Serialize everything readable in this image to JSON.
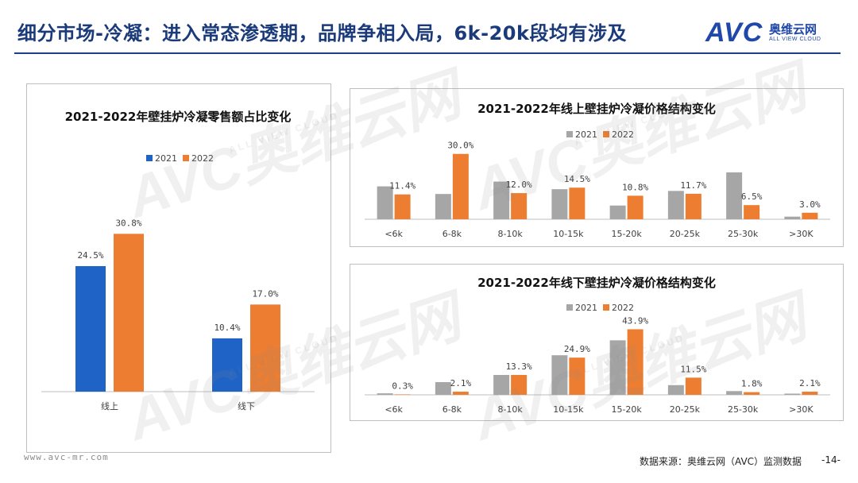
{
  "header": {
    "title": "细分市场-冷凝：进入常态渗透期，品牌争相入局，6k-20k段均有涉及",
    "logo_text": "AVC",
    "logo_cn": "奥维云网",
    "logo_en": "ALL VIEW CLOUD"
  },
  "colors": {
    "c2021_left": "#1f63c6",
    "c2021": "#a6a6a6",
    "c2022": "#ed7d31",
    "title": "#1a3a7a"
  },
  "watermark": {
    "brand": "AVC",
    "cn": "奥维云网",
    "en": "ALL VIEW CLOUD"
  },
  "chart_data": [
    {
      "type": "bar",
      "title": "2021-2022年壁挂炉冷凝零售额占比变化",
      "categories": [
        "线上",
        "线下"
      ],
      "series": [
        {
          "name": "2021",
          "values": [
            24.5,
            10.4
          ]
        },
        {
          "name": "2022",
          "values": [
            30.8,
            17.0
          ]
        }
      ],
      "labels": {
        "2021": [
          "24.5%",
          "10.4%"
        ],
        "2022": [
          "30.8%",
          "17.0%"
        ]
      },
      "ylim": [
        0,
        40
      ],
      "legend": "top-left",
      "xlabel": "",
      "ylabel": ""
    },
    {
      "type": "bar",
      "title": "2021-2022年线上壁挂炉冷凝价格结构变化",
      "categories": [
        "<6k",
        "6-8k",
        "8-10k",
        "10-15k",
        "15-20k",
        "20-25k",
        "25-30k",
        ">30K"
      ],
      "series": [
        {
          "name": "2021",
          "values": [
            15.1,
            11.6,
            17.3,
            13.8,
            6.3,
            13.0,
            21.5,
            1.2
          ]
        },
        {
          "name": "2022",
          "values": [
            11.4,
            30.0,
            12.0,
            14.5,
            10.8,
            11.7,
            6.5,
            3.0
          ]
        }
      ],
      "labels": {
        "2022": [
          "11.4%",
          "30.0%",
          "12.0%",
          "14.5%",
          "10.8%",
          "11.7%",
          "6.5%",
          "3.0%"
        ]
      },
      "ylim": [
        0,
        35
      ],
      "legend": "top-center",
      "xlabel": "",
      "ylabel": ""
    },
    {
      "type": "bar",
      "title": "2021-2022年线下壁挂炉冷凝价格结构变化",
      "categories": [
        "<6k",
        "6-8k",
        "8-10k",
        "10-15k",
        "15-20k",
        "20-25k",
        "25-30k",
        ">30K"
      ],
      "series": [
        {
          "name": "2021",
          "values": [
            1.0,
            8.5,
            13.3,
            26.5,
            36.5,
            6.5,
            2.5,
            0.8
          ]
        },
        {
          "name": "2022",
          "values": [
            0.3,
            2.1,
            13.3,
            24.9,
            43.9,
            11.5,
            1.8,
            2.1
          ]
        }
      ],
      "labels": {
        "2022": [
          "0.3%",
          "2.1%",
          "13.3%",
          "24.9%",
          "43.9%",
          "11.5%",
          "1.8%",
          "2.1%"
        ]
      },
      "ylim": [
        0,
        50
      ],
      "legend": "top-center",
      "xlabel": "",
      "ylabel": ""
    }
  ],
  "footer": {
    "url": "www.avc-mr.com",
    "source": "数据来源：奥维云网（AVC）监测数据",
    "page": "-14-"
  }
}
